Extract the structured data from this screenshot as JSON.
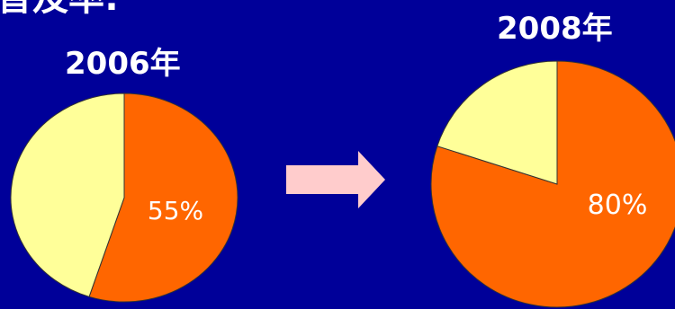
{
  "heading_partial": "普及率:",
  "colors": {
    "background": "#000099",
    "slice_highlight": "#ff6600",
    "slice_rest": "#ffff99",
    "arrow": "#ffcccc"
  },
  "chart_data": [
    {
      "type": "pie",
      "title": "2006年",
      "slices": [
        {
          "value": 55,
          "label": "55%",
          "color": "#ff6600"
        },
        {
          "value": 45,
          "label": "",
          "color": "#ffff99"
        }
      ]
    },
    {
      "type": "pie",
      "title": "2008年",
      "slices": [
        {
          "value": 80,
          "label": "80%",
          "color": "#ff6600"
        },
        {
          "value": 20,
          "label": "",
          "color": "#ffff99"
        }
      ]
    }
  ],
  "arrow_icon": "right-arrow-icon"
}
